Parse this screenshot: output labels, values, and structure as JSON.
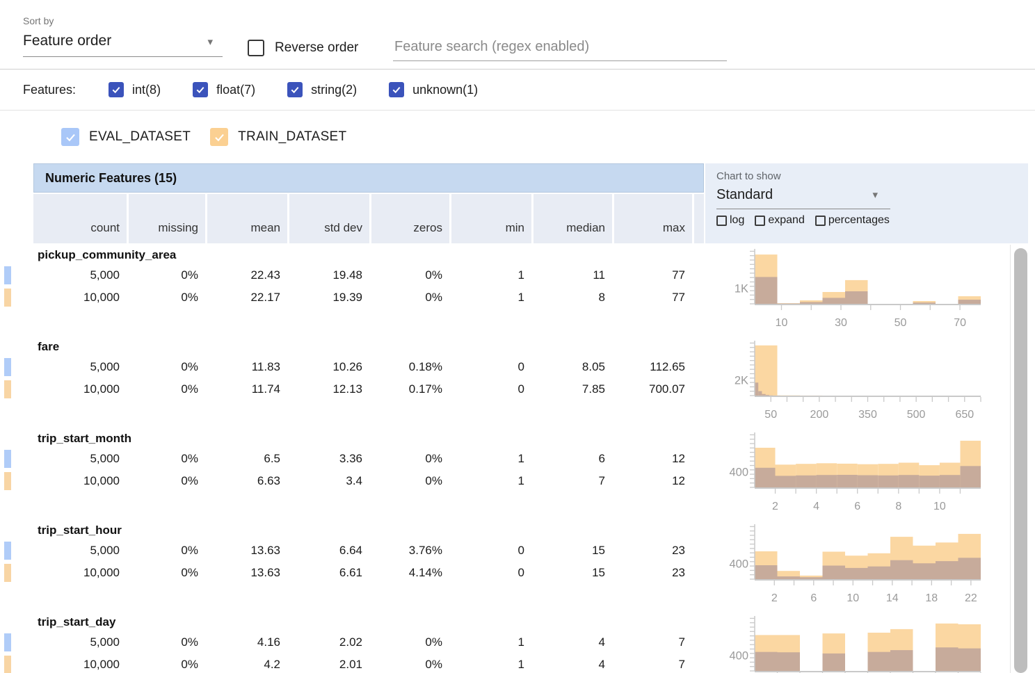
{
  "toolbar": {
    "sort_by_label": "Sort by",
    "sort_by_value": "Feature order",
    "reverse_order_label": "Reverse order",
    "search_placeholder": "Feature search (regex enabled)"
  },
  "filters": {
    "label": "Features:",
    "items": [
      {
        "label": "int(8)",
        "checked": true
      },
      {
        "label": "float(7)",
        "checked": true
      },
      {
        "label": "string(2)",
        "checked": true
      },
      {
        "label": "unknown(1)",
        "checked": true
      }
    ]
  },
  "datasets": [
    {
      "name": "EVAL_DATASET",
      "color": "#a9c7f8",
      "count_label": "5,000"
    },
    {
      "name": "TRAIN_DATASET",
      "color": "#fbd092",
      "count_label": "10,000"
    }
  ],
  "table": {
    "title": "Numeric Features (15)",
    "columns": [
      "count",
      "missing",
      "mean",
      "std dev",
      "zeros",
      "min",
      "median",
      "max"
    ]
  },
  "chart_controls": {
    "label": "Chart to show",
    "selected": "Standard",
    "options": [
      {
        "label": "log",
        "checked": false
      },
      {
        "label": "expand",
        "checked": false
      },
      {
        "label": "percentages",
        "checked": false
      }
    ]
  },
  "features": [
    {
      "name": "pickup_community_area",
      "eval": {
        "cells": [
          "5,000",
          "0%",
          "22.43",
          "19.48",
          "0%",
          "1",
          "11",
          "77"
        ]
      },
      "train": {
        "cells": [
          "10,000",
          "0%",
          "22.17",
          "19.39",
          "0%",
          "1",
          "8",
          "77"
        ]
      }
    },
    {
      "name": "fare",
      "eval": {
        "cells": [
          "5,000",
          "0%",
          "11.83",
          "10.26",
          "0.18%",
          "0",
          "8.05",
          "112.65"
        ]
      },
      "train": {
        "cells": [
          "10,000",
          "0%",
          "11.74",
          "12.13",
          "0.17%",
          "0",
          "7.85",
          "700.07"
        ]
      }
    },
    {
      "name": "trip_start_month",
      "eval": {
        "cells": [
          "5,000",
          "0%",
          "6.5",
          "3.36",
          "0%",
          "1",
          "6",
          "12"
        ]
      },
      "train": {
        "cells": [
          "10,000",
          "0%",
          "6.63",
          "3.4",
          "0%",
          "1",
          "7",
          "12"
        ]
      }
    },
    {
      "name": "trip_start_hour",
      "eval": {
        "cells": [
          "5,000",
          "0%",
          "13.63",
          "6.64",
          "3.76%",
          "0",
          "15",
          "23"
        ]
      },
      "train": {
        "cells": [
          "10,000",
          "0%",
          "13.63",
          "6.61",
          "4.14%",
          "0",
          "15",
          "23"
        ]
      }
    },
    {
      "name": "trip_start_day",
      "eval": {
        "cells": [
          "5,000",
          "0%",
          "4.16",
          "2.02",
          "0%",
          "1",
          "4",
          "7"
        ]
      },
      "train": {
        "cells": [
          "10,000",
          "0%",
          "4.2",
          "2.01",
          "0%",
          "1",
          "4",
          "7"
        ]
      }
    }
  ],
  "chart_data": [
    {
      "feature": "pickup_community_area",
      "type": "bar",
      "y_axis_label": "1K",
      "y_label_value": 1000,
      "ymax": 3300,
      "y_label_frac": 0.3,
      "x_range": [
        1,
        77
      ],
      "x_ticks": [
        10,
        20,
        30,
        40,
        50,
        60,
        70
      ],
      "x_tick_labels": [
        {
          "value": 10,
          "text": "10"
        },
        {
          "value": 30,
          "text": "30"
        },
        {
          "value": 50,
          "text": "50"
        },
        {
          "value": 70,
          "text": "70"
        }
      ],
      "series": [
        {
          "name": "TRAIN_DATASET",
          "bin_start": 1,
          "bin_width": 7.6,
          "counts": [
            3120,
            40,
            220,
            750,
            1500,
            0,
            0,
            175,
            0,
            480
          ]
        },
        {
          "name": "EVAL_DATASET",
          "bin_start": 1,
          "bin_width": 7.6,
          "counts": [
            1700,
            20,
            110,
            380,
            790,
            0,
            0,
            80,
            0,
            260
          ]
        }
      ]
    },
    {
      "feature": "fare",
      "type": "bar",
      "y_axis_label": "2K",
      "y_label_value": 2000,
      "ymax": 6600,
      "y_label_frac": 0.3,
      "x_range": [
        0,
        700
      ],
      "x_ticks": [
        50,
        100,
        150,
        200,
        250,
        300,
        350,
        400,
        450,
        500,
        550,
        600,
        650,
        700
      ],
      "x_tick_labels": [
        {
          "value": 50,
          "text": "50"
        },
        {
          "value": 200,
          "text": "200"
        },
        {
          "value": 350,
          "text": "350"
        },
        {
          "value": 500,
          "text": "500"
        },
        {
          "value": 650,
          "text": "650"
        }
      ],
      "series": [
        {
          "name": "TRAIN_DATASET",
          "bin_start": 0,
          "bin_width": 70,
          "counts": [
            6350,
            30,
            10,
            0,
            0,
            0,
            0,
            0,
            0,
            0
          ]
        },
        {
          "name": "EVAL_DATASET",
          "bin_start": 0,
          "bin_width": 11.3,
          "counts": [
            1650,
            560,
            200,
            90,
            30,
            10,
            5,
            3,
            2,
            1
          ]
        }
      ]
    },
    {
      "feature": "trip_start_month",
      "type": "bar",
      "y_axis_label": "400",
      "y_label_value": 400,
      "ymax": 1330,
      "y_label_frac": 0.3,
      "x_range": [
        1,
        12
      ],
      "x_ticks": [
        2,
        3,
        4,
        5,
        6,
        7,
        8,
        9,
        10,
        11
      ],
      "x_tick_labels": [
        {
          "value": 2,
          "text": "2"
        },
        {
          "value": 4,
          "text": "4"
        },
        {
          "value": 6,
          "text": "6"
        },
        {
          "value": 8,
          "text": "8"
        },
        {
          "value": 10,
          "text": "10"
        }
      ],
      "series": [
        {
          "name": "TRAIN_DATASET",
          "bin_start": 1,
          "bin_width": 1,
          "counts": [
            1010,
            580,
            600,
            615,
            605,
            590,
            600,
            630,
            565,
            630,
            1190
          ]
        },
        {
          "name": "EVAL_DATASET",
          "bin_start": 1,
          "bin_width": 1,
          "counts": [
            500,
            295,
            305,
            315,
            320,
            310,
            305,
            315,
            300,
            315,
            545
          ]
        }
      ]
    },
    {
      "feature": "trip_start_hour",
      "type": "bar",
      "y_axis_label": "400",
      "y_label_value": 400,
      "ymax": 1330,
      "y_label_frac": 0.3,
      "x_range": [
        0,
        23
      ],
      "x_ticks": [
        2,
        4,
        6,
        8,
        10,
        12,
        14,
        16,
        18,
        20,
        22
      ],
      "x_tick_labels": [
        {
          "value": 2,
          "text": "2"
        },
        {
          "value": 6,
          "text": "6"
        },
        {
          "value": 10,
          "text": "10"
        },
        {
          "value": 14,
          "text": "14"
        },
        {
          "value": 18,
          "text": "18"
        },
        {
          "value": 22,
          "text": "22"
        }
      ],
      "series": [
        {
          "name": "TRAIN_DATASET",
          "bin_start": 0,
          "bin_width": 2.3,
          "counts": [
            710,
            210,
            90,
            700,
            600,
            660,
            1080,
            855,
            935,
            1155
          ]
        },
        {
          "name": "EVAL_DATASET",
          "bin_start": 0,
          "bin_width": 2.3,
          "counts": [
            355,
            70,
            50,
            345,
            285,
            325,
            485,
            405,
            460,
            545
          ]
        }
      ]
    },
    {
      "feature": "trip_start_day",
      "type": "bar",
      "y_axis_label": "400",
      "y_label_value": 400,
      "ymax": 1330,
      "y_label_frac": 0.3,
      "x_range": [
        1,
        7
      ],
      "x_ticks": [
        1.6,
        2.2,
        2.8,
        3.4,
        4,
        4.6,
        5.2,
        5.8,
        6.4,
        7
      ],
      "x_tick_labels": [],
      "series": [
        {
          "name": "TRAIN_DATASET",
          "bin_start": 1,
          "bin_width": 0.6,
          "counts": [
            915,
            915,
            0,
            955,
            0,
            975,
            1065,
            0,
            1210,
            1190
          ]
        },
        {
          "name": "EVAL_DATASET",
          "bin_start": 1,
          "bin_width": 0.6,
          "counts": [
            485,
            475,
            0,
            445,
            0,
            485,
            530,
            0,
            600,
            575
          ]
        }
      ]
    }
  ],
  "colors": {
    "filter_checkbox": "#3b53bb",
    "eval_checkbox": "#a9c7f8",
    "train_checkbox": "#fbd092",
    "eval_marker": "#b0ccf8",
    "train_marker": "#f8d5a4",
    "train_bar": "#fbd7a2",
    "eval_overlap_bar": "#c7ab9b",
    "header_bg": "#c6d9f0",
    "subheader_bg": "#e8ecf4",
    "panel_bg": "#e8eef7",
    "axis": "#c9c9c9",
    "axis_label": "#9a9a9a"
  }
}
